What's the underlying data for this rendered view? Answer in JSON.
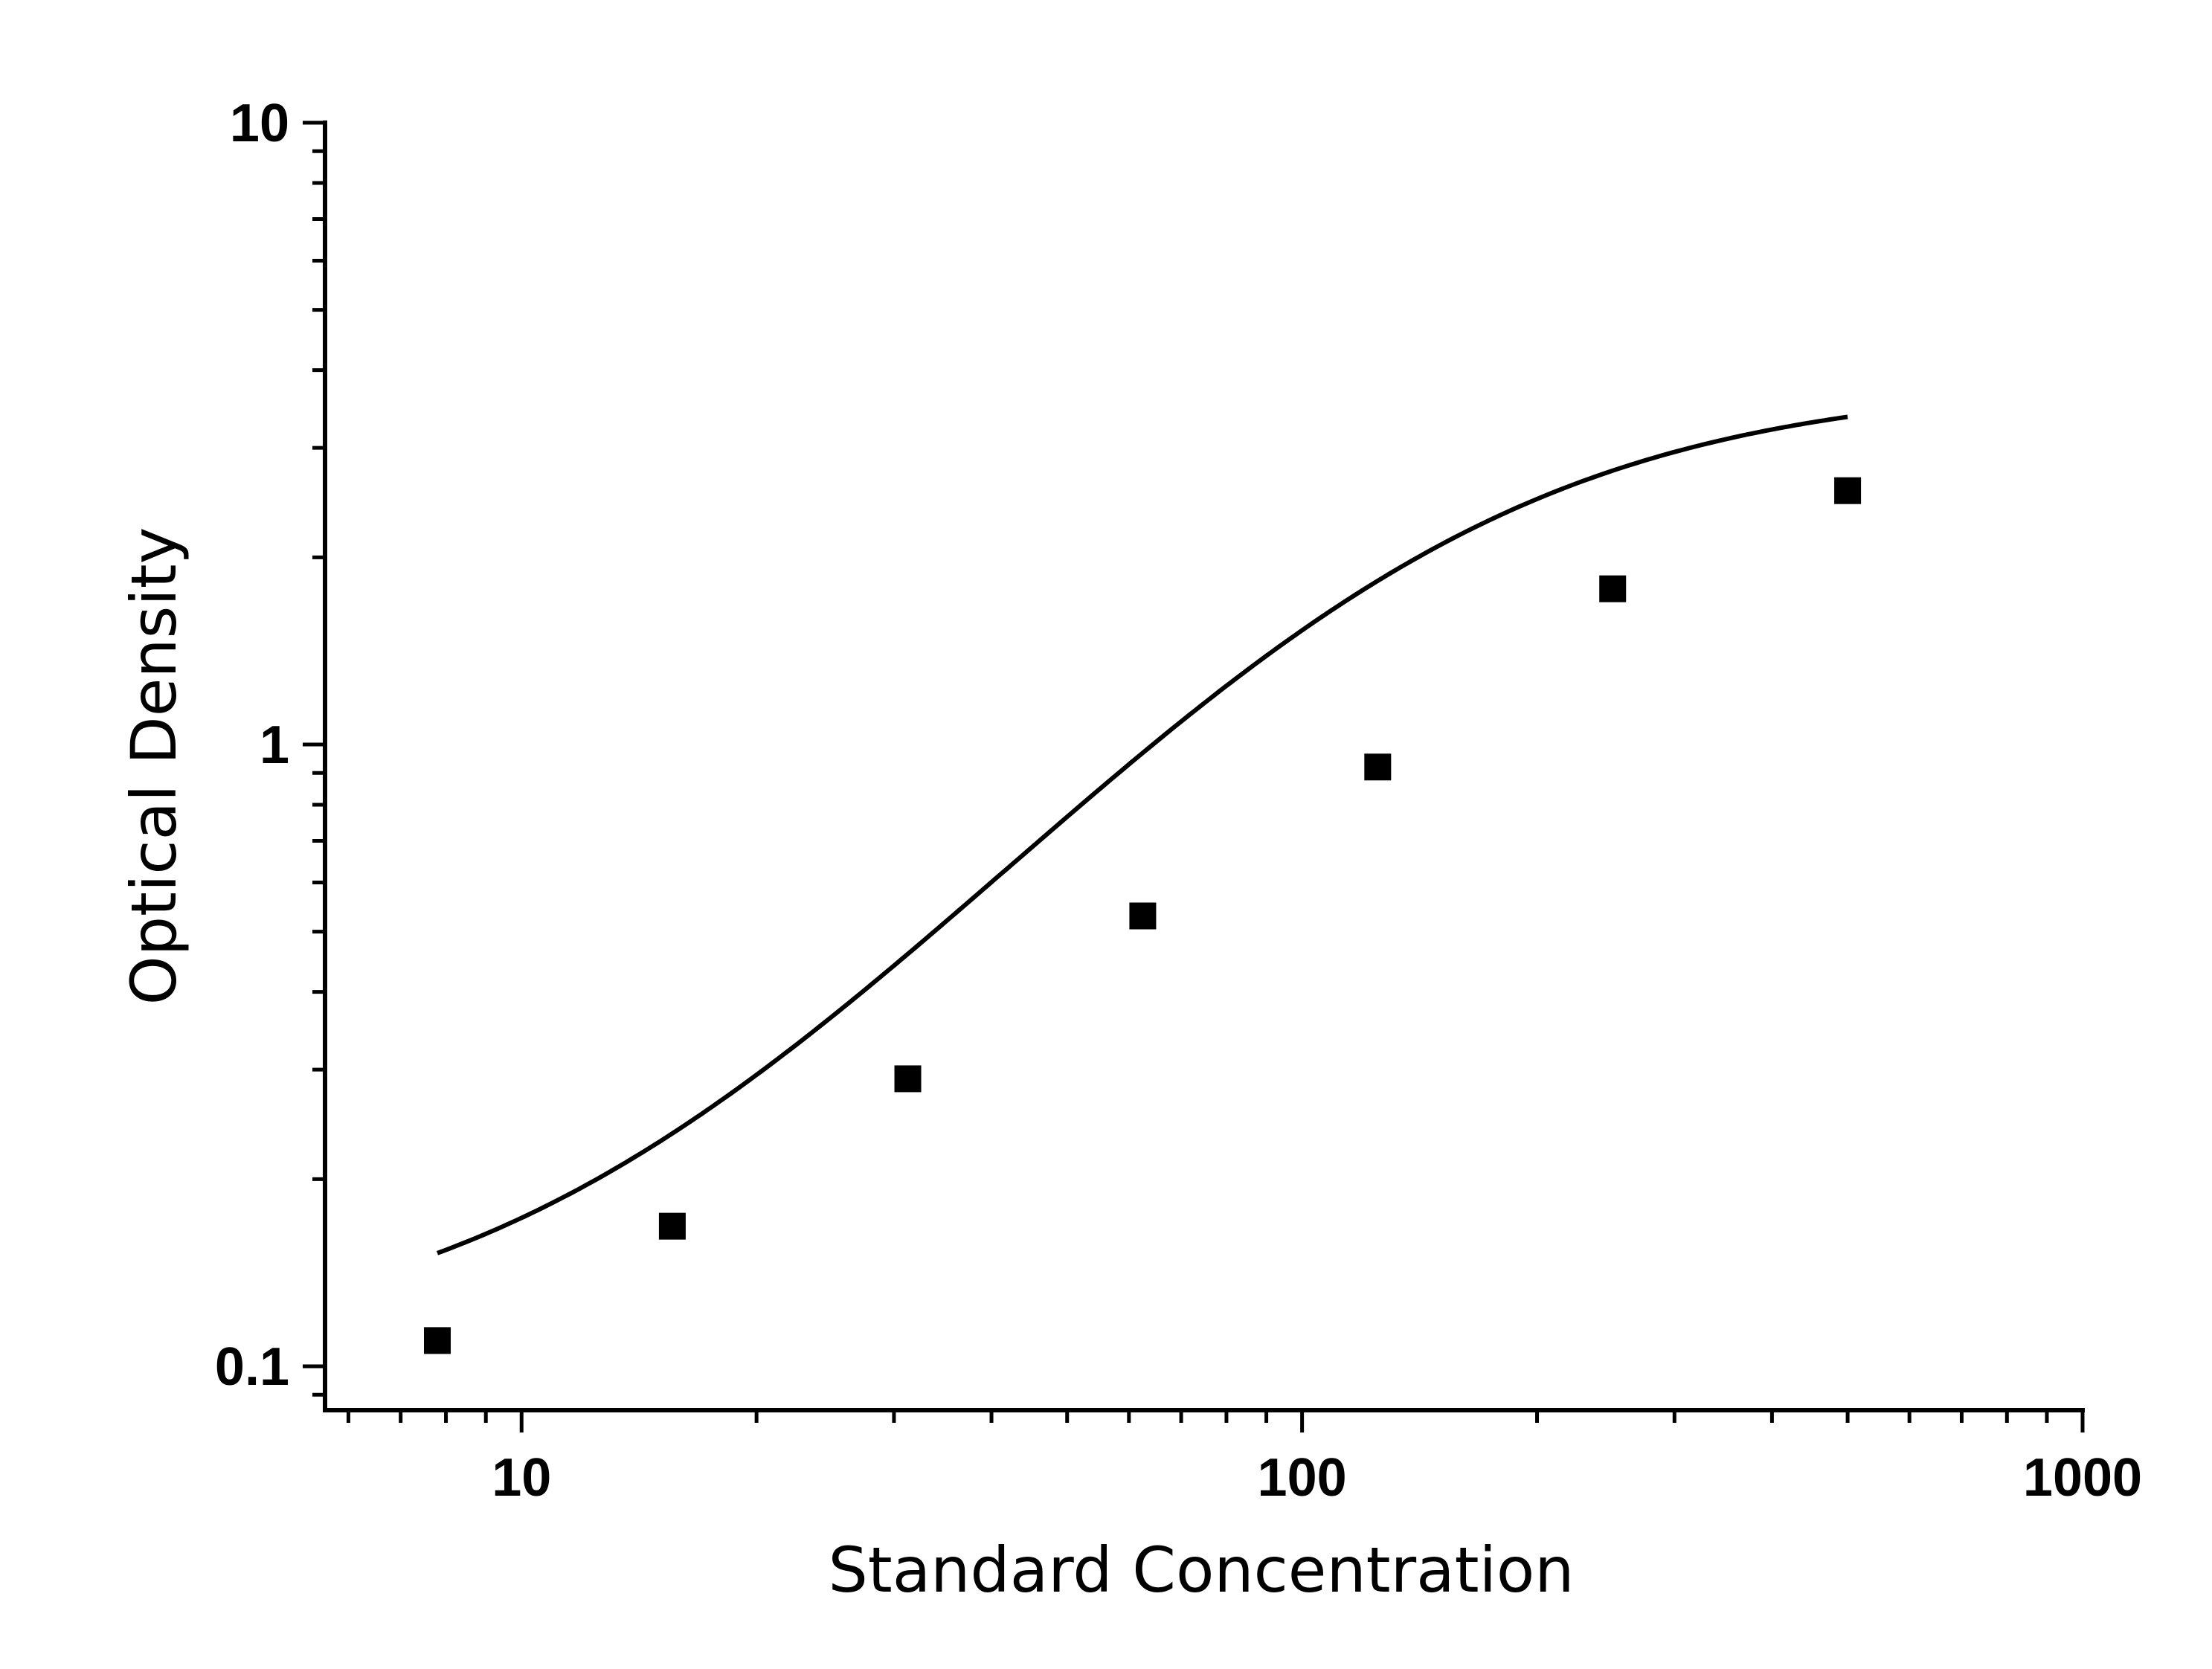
{
  "chart_data": {
    "type": "scatter",
    "title": "",
    "xlabel": "Standard Concentration",
    "ylabel": "Optical Density",
    "xscale": "log",
    "yscale": "log",
    "xlim": [
      5.6,
      1000
    ],
    "ylim": [
      0.085,
      10
    ],
    "x_ticks": [
      {
        "value": 10,
        "label": "10"
      },
      {
        "value": 100,
        "label": "100"
      },
      {
        "value": 1000,
        "label": "1000"
      }
    ],
    "y_ticks": [
      {
        "value": 0.1,
        "label": "0.1"
      },
      {
        "value": 1,
        "label": "1"
      },
      {
        "value": 10,
        "label": "10"
      }
    ],
    "grid": false,
    "legend": "none",
    "marker": "square",
    "color": "#000000",
    "points": {
      "x": [
        7.8,
        15.6,
        31.25,
        62.5,
        125,
        250,
        500
      ],
      "y": [
        0.11,
        0.168,
        0.29,
        0.53,
        0.92,
        1.78,
        2.56
      ]
    },
    "fit_curve": {
      "type": "4PL",
      "a": 0.105,
      "b": 1.52,
      "c": 137,
      "d": 3.82,
      "x_range": [
        7.8,
        500
      ]
    }
  }
}
